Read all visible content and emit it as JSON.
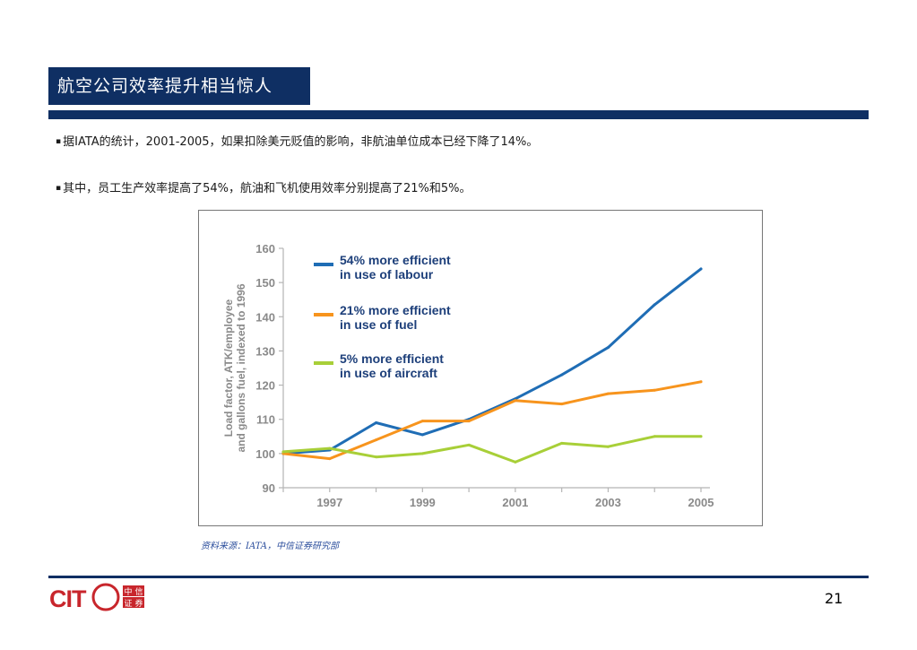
{
  "header": {
    "title": "航空公司效率提升相当惊人"
  },
  "bullets": [
    {
      "marker": "▪",
      "text": "据IATA的统计，2001-2005，如果扣除美元贬值的影响，非航油单位成本已经下降了14%。"
    },
    {
      "marker": "▪",
      "text": "其中，员工生产效率提高了54%，航油和飞机使用效率分别提高了21%和5%。"
    }
  ],
  "source": "资料来源：IATA，中信证券研究部",
  "footer": {
    "page_number": "21",
    "logo": {
      "text": "CITIC",
      "sub_chars": [
        "中",
        "信",
        "证",
        "券"
      ]
    }
  },
  "colors": {
    "navy": "#0f2f63",
    "labour": "#1f6db5",
    "fuel": "#f7941d",
    "aircraft": "#a8cf38",
    "axis_text": "#8a8a8a",
    "legend_text": "#1d3f7a",
    "logo_red": "#c8262c"
  },
  "chart_data": {
    "type": "line",
    "title": "",
    "ylabel": "Load factor, ATK/employee and gallons fuel, indexed to 1996",
    "xlabel": "",
    "ylim": [
      90,
      160
    ],
    "xlim": [
      1996,
      2005
    ],
    "yticks": [
      90,
      100,
      110,
      120,
      130,
      140,
      150,
      160
    ],
    "xticks": [
      1997,
      1999,
      2001,
      2003,
      2005
    ],
    "grid": false,
    "legend": "top-left, inside plot",
    "x": [
      1996,
      1997,
      1998,
      1999,
      2000,
      2001,
      2002,
      2003,
      2004,
      2005
    ],
    "series": [
      {
        "name": "54% more efficient in use of labour",
        "legend_lines": [
          "54% more efficient",
          "in use of labour"
        ],
        "color": "#1f6db5",
        "values": [
          100,
          101,
          109,
          105.5,
          110,
          116,
          123,
          131,
          143.5,
          154
        ]
      },
      {
        "name": "21% more efficient in use of fuel",
        "legend_lines": [
          "21% more efficient",
          "in use of fuel"
        ],
        "color": "#f7941d",
        "values": [
          100,
          98.5,
          104,
          109.5,
          109.5,
          115.5,
          114.5,
          117.5,
          118.5,
          121
        ]
      },
      {
        "name": "5% more efficient in use of aircraft",
        "legend_lines": [
          "5% more efficient",
          "in use of aircraft"
        ],
        "color": "#a8cf38",
        "values": [
          100.5,
          101.5,
          99,
          100,
          102.5,
          97.5,
          103,
          102,
          105,
          105
        ]
      }
    ]
  }
}
